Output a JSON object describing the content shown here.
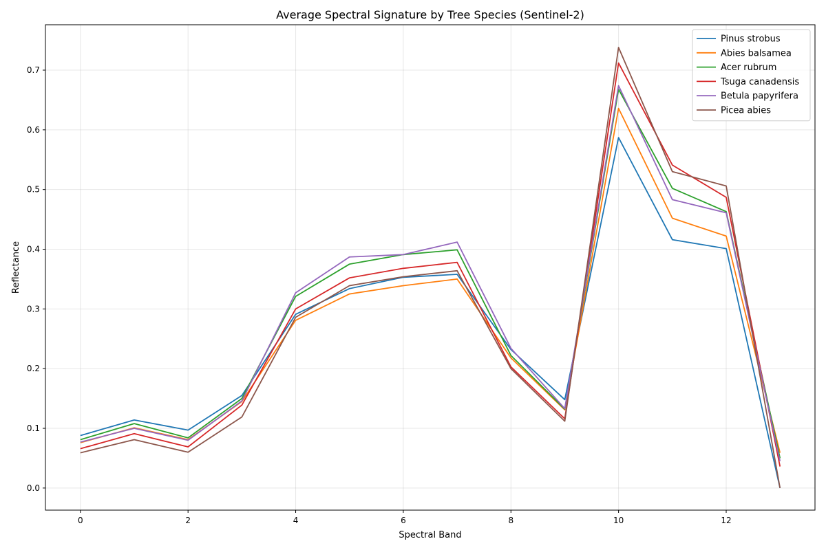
{
  "chart_data": {
    "type": "line",
    "title": "Average Spectral Signature by Tree Species (Sentinel-2)",
    "xlabel": "Spectral Band",
    "ylabel": "Reflectance",
    "xlim": [
      -0.65,
      13.65
    ],
    "ylim": [
      -0.037,
      0.776
    ],
    "xticks": [
      0,
      2,
      4,
      6,
      8,
      10,
      12
    ],
    "yticks": [
      0.0,
      0.1,
      0.2,
      0.3,
      0.4,
      0.5,
      0.6,
      0.7
    ],
    "ytick_labels": [
      "0.0",
      "0.1",
      "0.2",
      "0.3",
      "0.4",
      "0.5",
      "0.6",
      "0.7"
    ],
    "grid": true,
    "legend_position": "top-right",
    "x": [
      0,
      1,
      2,
      3,
      4,
      5,
      6,
      7,
      8,
      9,
      10,
      11,
      12,
      13
    ],
    "series": [
      {
        "name": "Pinus strobus",
        "color": "#1f77b4",
        "values": [
          0.088,
          0.114,
          0.097,
          0.155,
          0.291,
          0.334,
          0.353,
          0.358,
          0.232,
          0.148,
          0.587,
          0.416,
          0.401,
          0.0
        ]
      },
      {
        "name": "Abies balsamea",
        "color": "#ff7f0e",
        "values": [
          0.076,
          0.101,
          0.081,
          0.145,
          0.281,
          0.325,
          0.339,
          0.35,
          0.218,
          0.131,
          0.636,
          0.452,
          0.422,
          0.059
        ]
      },
      {
        "name": "Acer rubrum",
        "color": "#2ca02c",
        "values": [
          0.081,
          0.108,
          0.084,
          0.15,
          0.321,
          0.375,
          0.391,
          0.399,
          0.222,
          0.132,
          0.668,
          0.502,
          0.463,
          0.05
        ]
      },
      {
        "name": "Tsuga canadensis",
        "color": "#d62728",
        "values": [
          0.066,
          0.091,
          0.069,
          0.139,
          0.3,
          0.352,
          0.368,
          0.378,
          0.203,
          0.116,
          0.712,
          0.541,
          0.487,
          0.036
        ]
      },
      {
        "name": "Betula papyrifera",
        "color": "#9467bd",
        "values": [
          0.077,
          0.1,
          0.08,
          0.146,
          0.327,
          0.387,
          0.391,
          0.412,
          0.234,
          0.133,
          0.674,
          0.483,
          0.461,
          0.045
        ]
      },
      {
        "name": "Picea abies",
        "color": "#8c564b",
        "values": [
          0.059,
          0.081,
          0.06,
          0.119,
          0.286,
          0.339,
          0.354,
          0.364,
          0.2,
          0.112,
          0.738,
          0.53,
          0.506,
          0.0
        ]
      }
    ]
  }
}
